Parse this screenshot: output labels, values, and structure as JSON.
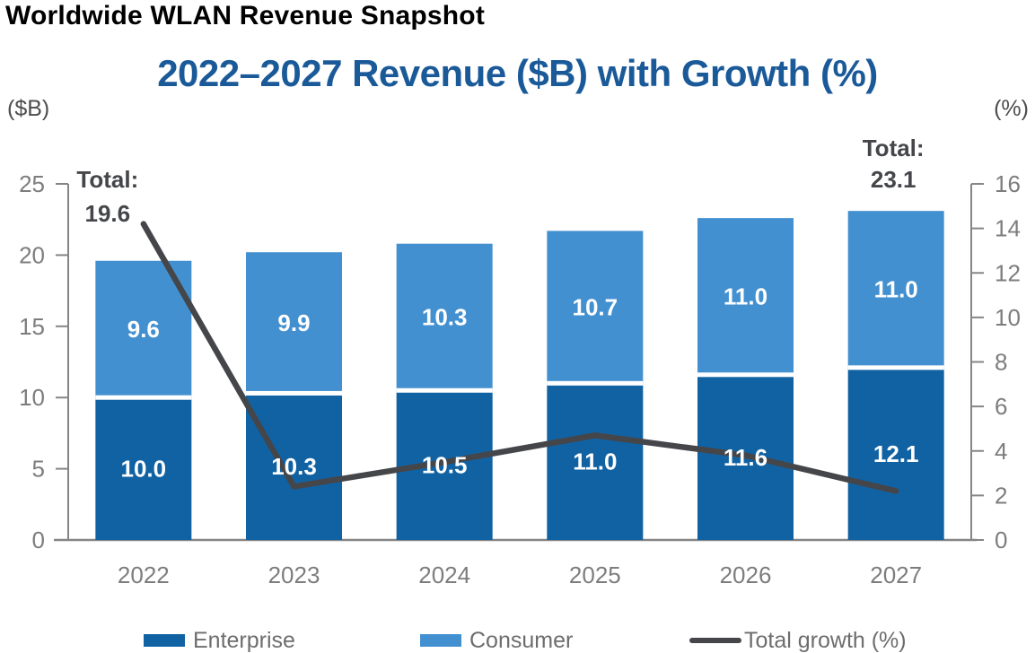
{
  "page": {
    "title": "Worldwide WLAN Revenue Snapshot"
  },
  "chart": {
    "title": "2022–2027 Revenue ($B) with Growth (%)",
    "left_axis_unit": "($B)",
    "right_axis_unit": "(%)"
  },
  "chart_data": {
    "type": "combo-stacked-bar-line",
    "title": "2022–2027 Revenue ($B) with Growth (%)",
    "categories": [
      "2022",
      "2023",
      "2024",
      "2025",
      "2026",
      "2027"
    ],
    "series": [
      {
        "name": "Enterprise",
        "type": "bar",
        "stack": "revenue",
        "axis": "left",
        "color": "#1162a3",
        "values": [
          10.0,
          10.3,
          10.5,
          11.0,
          11.6,
          12.1
        ]
      },
      {
        "name": "Consumer",
        "type": "bar",
        "stack": "revenue",
        "axis": "left",
        "color": "#4390d0",
        "values": [
          9.6,
          9.9,
          10.3,
          10.7,
          11.0,
          11.0
        ]
      },
      {
        "name": "Total growth (%)",
        "type": "line",
        "axis": "right",
        "color": "#45464a",
        "values": [
          14.2,
          2.4,
          3.5,
          4.7,
          3.8,
          2.2
        ]
      }
    ],
    "bar_label_decimals": 1,
    "annotations": [
      {
        "label": "Total:",
        "value": "19.6",
        "category_index": 0,
        "dx": -40,
        "label_dy": -82,
        "value_dy": -44
      },
      {
        "label": "Total:",
        "value": "23.1",
        "category_index": 5,
        "dx": -3,
        "label_dy": -61,
        "value_dy": -26
      }
    ],
    "left_axis": {
      "unit": "($B)",
      "min": 0,
      "max": 25,
      "ticks": [
        0,
        5,
        10,
        15,
        20,
        25
      ]
    },
    "right_axis": {
      "unit": "(%)",
      "min": 0,
      "max": 16,
      "ticks": [
        0,
        2,
        4,
        6,
        8,
        10,
        12,
        14,
        16
      ]
    },
    "legend_position": "bottom",
    "grid": false
  },
  "legend": {
    "items": [
      {
        "label": "Enterprise",
        "swatch": "bar",
        "color": "#1162a3"
      },
      {
        "label": "Consumer",
        "swatch": "bar",
        "color": "#4390d0"
      },
      {
        "label": "Total growth (%)",
        "swatch": "line",
        "color": "#45464a"
      }
    ]
  },
  "colors": {
    "title_blue": "#1b5a99",
    "axis_text_gray": "#7d7d7d",
    "spine_gray": "#858585",
    "annotation_dark": "#44464a",
    "bar_label_white": "#ffffff",
    "legend_text_gray": "#6d6d6d",
    "unit_label_gray": "#4d4d4d"
  }
}
